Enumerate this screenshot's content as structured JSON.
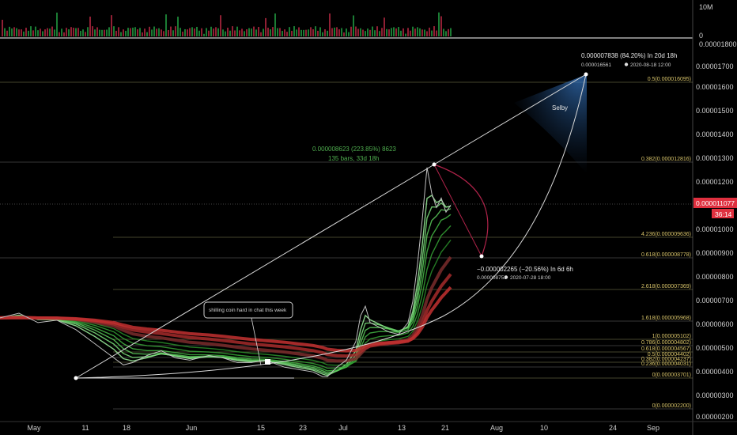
{
  "chart_data": {
    "type": "line",
    "symbol_volume_label": "10M",
    "volume_zero_label": "0",
    "volume_top_price": "0.00001800",
    "x_labels": [
      "May",
      "11",
      "18",
      "Jun",
      "15",
      "23",
      "Jul",
      "13",
      "21",
      "Aug",
      "10",
      "24",
      "Sep"
    ],
    "y_ticks": [
      "0.00001700",
      "0.00001600",
      "0.00001500",
      "0.00001400",
      "0.00001300",
      "0.00001200",
      "0.00001000",
      "0.00000900",
      "0.00000800",
      "0.00000700",
      "0.00000600",
      "0.00000500",
      "0.00000400",
      "0.00000300",
      "0.00000200"
    ],
    "y_range_value": [
      1.4e-06,
      1.78e-05
    ],
    "price_series": [
      {
        "t": 0,
        "v": 6.3e-06
      },
      {
        "t": 4,
        "v": 6.5e-06
      },
      {
        "t": 8,
        "v": 6.1e-06
      },
      {
        "t": 12,
        "v": 6.2e-06
      },
      {
        "t": 16,
        "v": 5.8e-06
      },
      {
        "t": 20,
        "v": 5.2e-06
      },
      {
        "t": 24,
        "v": 4.6e-06
      },
      {
        "t": 26,
        "v": 4.3e-06
      },
      {
        "t": 28,
        "v": 4.4e-06
      },
      {
        "t": 31,
        "v": 4.7e-06
      },
      {
        "t": 34,
        "v": 4.9e-06
      },
      {
        "t": 37,
        "v": 4.6e-06
      },
      {
        "t": 40,
        "v": 4.5e-06
      },
      {
        "t": 44,
        "v": 4.7e-06
      },
      {
        "t": 47,
        "v": 4.6e-06
      },
      {
        "t": 50,
        "v": 4.4e-06
      },
      {
        "t": 53,
        "v": 4.4e-06
      },
      {
        "t": 56,
        "v": 4.5e-06
      },
      {
        "t": 60,
        "v": 4.2e-06
      },
      {
        "t": 63,
        "v": 4.1e-06
      },
      {
        "t": 66,
        "v": 4e-06
      },
      {
        "t": 68,
        "v": 3.8e-06
      },
      {
        "t": 69,
        "v": 3.8e-06
      },
      {
        "t": 71,
        "v": 4.2e-06
      },
      {
        "t": 73,
        "v": 4.5e-06
      },
      {
        "t": 75,
        "v": 5.3e-06
      },
      {
        "t": 76,
        "v": 6.4e-06
      },
      {
        "t": 77,
        "v": 6.8e-06
      },
      {
        "t": 78,
        "v": 6.1e-06
      },
      {
        "t": 80,
        "v": 5.9e-06
      },
      {
        "t": 82,
        "v": 5.7e-06
      },
      {
        "t": 84,
        "v": 5.6e-06
      },
      {
        "t": 86,
        "v": 6.1e-06
      },
      {
        "t": 87,
        "v": 7e-06
      },
      {
        "t": 88,
        "v": 8.6e-06
      },
      {
        "t": 89,
        "v": 1.05e-05
      },
      {
        "t": 90,
        "v": 1.27e-05
      },
      {
        "t": 91,
        "v": 1.16e-05
      },
      {
        "t": 92,
        "v": 1.1e-05
      },
      {
        "t": 93,
        "v": 1.14e-05
      },
      {
        "t": 94,
        "v": 1.08e-05
      },
      {
        "t": 95,
        "v": 1.11e-05
      }
    ],
    "current_price": "0.000011077",
    "countdown": "36:14",
    "fib_levels": [
      {
        "label": "0.5(0.000016095)"
      },
      {
        "label": "0.382(0.000012816)"
      },
      {
        "label": "4.236(0.000009636)"
      },
      {
        "label": "0.618(0.000008778)"
      },
      {
        "label": "2.618(0.000007369)"
      },
      {
        "label": "1.618(0.000005968)"
      },
      {
        "label": "1(0.000005102)"
      },
      {
        "label": "0.786(0.000004802)"
      },
      {
        "label": "0.618(0.000004567)"
      },
      {
        "label": "0.5(0.000004402)"
      },
      {
        "label": "0.382(0.000004237)"
      },
      {
        "label": "0.236(0.000004031)"
      },
      {
        "label": "0(0.000003701)"
      },
      {
        "label": "0(0.000002200)"
      }
    ],
    "annotations": {
      "target_line1": "0.000007838 (84.20%) In 20d 18h",
      "target_price": "0.000016561",
      "target_date": "2020-08-18  12:00",
      "selby": "Selby",
      "measure_line1": "0.000008623 (223.85%) 8623",
      "measure_line2": "135 bars, 33d 18h",
      "drop_line1": "−0.000002265 (−20.56%) In 6d 6h",
      "drop_price": "0.000008753",
      "drop_date": "2020-07-28  18:00",
      "callout": "shilling coin hard in chat this week"
    }
  }
}
